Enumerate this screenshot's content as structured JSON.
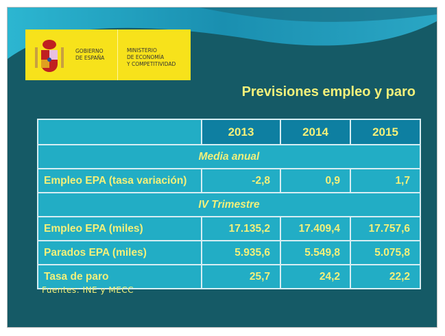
{
  "logo": {
    "gobierno_lines": [
      "GOBIERNO",
      "DE ESPAÑA"
    ],
    "ministerio_lines": [
      "MINISTERIO",
      "DE ECONOMÍA",
      "Y COMPETITIVIDAD"
    ]
  },
  "title": "Previsiones empleo y paro",
  "table": {
    "years": [
      "2013",
      "2014",
      "2015"
    ],
    "section_annual": "Media anual",
    "row_empleo_tasa": {
      "label": "Empleo EPA (tasa variación)",
      "values": [
        "-2,8",
        "0,9",
        "1,7"
      ]
    },
    "section_q4": "IV Trimestre",
    "row_empleo_miles": {
      "label": "Empleo EPA (miles)",
      "values": [
        "17.135,2",
        "17.409,4",
        "17.757,6"
      ]
    },
    "row_parados": {
      "label": "Parados EPA (miles)",
      "values": [
        "5.935,6",
        "5.549,8",
        "5.075,8"
      ]
    },
    "row_tasa_paro": {
      "label": "Tasa de paro",
      "values": [
        "25,7",
        "24,2",
        "22,2"
      ]
    }
  },
  "source": "Fuentes: INE y MECC",
  "colors": {
    "background": "#155a66",
    "cell": "#22adc5",
    "header": "#0e7fa1",
    "text": "#f3f07a",
    "logo": "#f7e21b"
  }
}
